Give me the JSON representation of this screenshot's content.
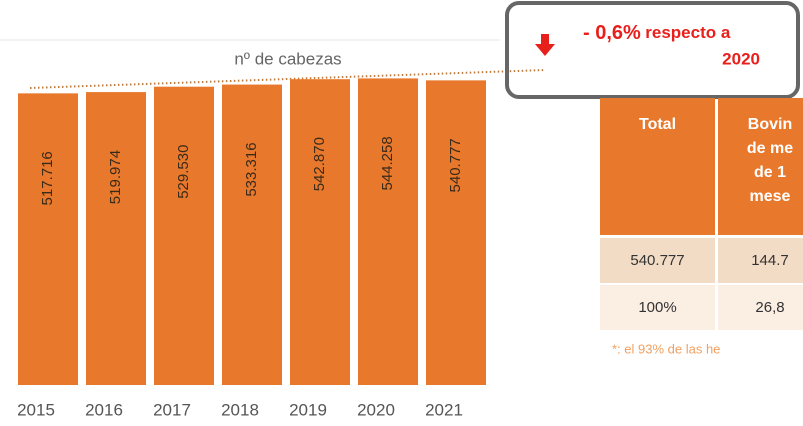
{
  "chart_data": {
    "type": "bar",
    "annotation": "nº de cabezas",
    "categories": [
      "2015",
      "2016",
      "2017",
      "2018",
      "2019",
      "2020",
      "2021"
    ],
    "values": [
      517716,
      519974,
      529530,
      533316,
      542870,
      544258,
      540777
    ],
    "value_labels": [
      "517.716",
      "519.974",
      "529.530",
      "533.316",
      "542.870",
      "544.258",
      "540.777"
    ],
    "color": "#e8792c",
    "ylim": [
      0,
      600000
    ]
  },
  "callout": {
    "change": "- 0,6%",
    "text": "respecto a",
    "year": "2020"
  },
  "table": {
    "header": [
      "Total",
      [
        "Bovin",
        "de me",
        "de 1",
        "mese"
      ]
    ],
    "rows": [
      [
        "540.777",
        "144.7"
      ],
      [
        "100%",
        "26,8"
      ]
    ],
    "footnote": "*: el 93% de las he"
  }
}
